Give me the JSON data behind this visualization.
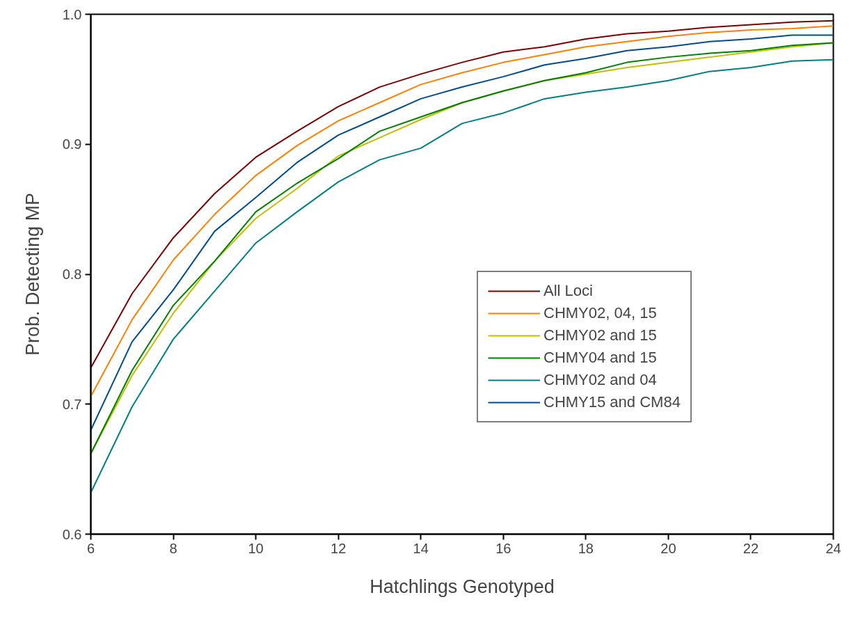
{
  "chart_data": {
    "type": "line",
    "xlabel": "Hatchlings Genotyped",
    "ylabel": "Prob. Detecting MP",
    "x": [
      6,
      7,
      8,
      9,
      10,
      11,
      12,
      13,
      14,
      15,
      16,
      17,
      18,
      19,
      20,
      21,
      22,
      23,
      24
    ],
    "xlim": [
      6,
      24
    ],
    "xticks": [
      6,
      8,
      10,
      12,
      14,
      16,
      18,
      20,
      22,
      24
    ],
    "ylim": [
      0.6,
      1.0
    ],
    "yticks": [
      0.6,
      0.7,
      0.8,
      0.9,
      {
        "value": 1.0,
        "label": "1.0"
      }
    ],
    "grid": false,
    "legend": "right",
    "marker": "none",
    "line_style": "solid",
    "series": [
      {
        "name": "All Loci",
        "color": "#7f0000",
        "values": [
          0.728,
          0.785,
          0.828,
          0.862,
          0.89,
          0.91,
          0.929,
          0.944,
          0.954,
          0.963,
          0.971,
          0.975,
          0.981,
          0.985,
          0.987,
          0.99,
          0.992,
          0.994,
          0.995
        ]
      },
      {
        "name": "CHMY02, 04, 15",
        "color": "#ff8000",
        "values": [
          0.706,
          0.765,
          0.811,
          0.846,
          0.876,
          0.899,
          0.918,
          0.932,
          0.946,
          0.955,
          0.963,
          0.969,
          0.975,
          0.979,
          0.983,
          0.986,
          0.988,
          0.989,
          0.991
        ]
      },
      {
        "name": "CHMY02 and 15",
        "color": "#bfbf00",
        "values": [
          0.662,
          0.722,
          0.77,
          0.81,
          0.843,
          0.866,
          0.891,
          0.905,
          0.919,
          0.932,
          0.941,
          0.949,
          0.954,
          0.959,
          0.963,
          0.967,
          0.971,
          0.975,
          0.978
        ]
      },
      {
        "name": "CHMY04 and 15",
        "color": "#008000",
        "values": [
          0.662,
          0.726,
          0.776,
          0.81,
          0.848,
          0.87,
          0.889,
          0.91,
          0.921,
          0.932,
          0.941,
          0.949,
          0.955,
          0.963,
          0.967,
          0.97,
          0.972,
          0.976,
          0.978
        ]
      },
      {
        "name": "CHMY02 and 04",
        "color": "#008080",
        "values": [
          0.632,
          0.698,
          0.75,
          0.787,
          0.824,
          0.848,
          0.871,
          0.888,
          0.897,
          0.916,
          0.924,
          0.935,
          0.94,
          0.944,
          0.949,
          0.956,
          0.959,
          0.964,
          0.965
        ]
      },
      {
        "name": "CHMY15 and CM84",
        "color": "#004c8c",
        "values": [
          0.68,
          0.748,
          0.788,
          0.833,
          0.859,
          0.886,
          0.907,
          0.921,
          0.935,
          0.944,
          0.952,
          0.961,
          0.966,
          0.972,
          0.975,
          0.979,
          0.981,
          0.984,
          0.984
        ]
      }
    ]
  }
}
